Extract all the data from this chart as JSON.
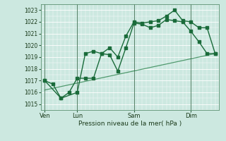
{
  "bg_color": "#cce8e0",
  "grid_color": "#ffffff",
  "line_color": "#1a6b3a",
  "trend_color": "#3a8c5a",
  "xlabel": "Pression niveau de la mer( hPa )",
  "ylim": [
    1014.5,
    1023.5
  ],
  "yticks": [
    1015,
    1016,
    1017,
    1018,
    1019,
    1020,
    1021,
    1022,
    1023
  ],
  "xlim": [
    -0.3,
    21.3
  ],
  "n_points": 22,
  "day_positions": [
    0,
    4,
    11,
    18
  ],
  "day_labels": [
    "Ven",
    "Lun",
    "Sam",
    "Dim"
  ],
  "series1_x": [
    0,
    1,
    2,
    3,
    4,
    5,
    6,
    7,
    8,
    9,
    10,
    11,
    12,
    13,
    14,
    15,
    16,
    17,
    18,
    19,
    20,
    21
  ],
  "series1_y": [
    1017.0,
    1016.7,
    1015.5,
    1016.0,
    1017.2,
    1017.2,
    1017.2,
    1019.3,
    1019.2,
    1017.8,
    1019.8,
    1021.9,
    1021.8,
    1021.5,
    1021.7,
    1022.2,
    1022.1,
    1022.0,
    1021.2,
    1020.3,
    1019.3,
    1019.3
  ],
  "series2_x": [
    0,
    2,
    4,
    5,
    6,
    7,
    8,
    9,
    10,
    11,
    12,
    13,
    14,
    15,
    16,
    17,
    18,
    19,
    20,
    21
  ],
  "series2_y": [
    1017.0,
    1015.5,
    1016.0,
    1019.3,
    1019.5,
    1019.3,
    1019.8,
    1019.0,
    1020.8,
    1022.0,
    1021.9,
    1022.0,
    1022.1,
    1022.5,
    1023.0,
    1022.1,
    1022.0,
    1021.5,
    1021.5,
    1019.3
  ],
  "trend_x": [
    0,
    21
  ],
  "trend_y": [
    1016.2,
    1019.3
  ]
}
